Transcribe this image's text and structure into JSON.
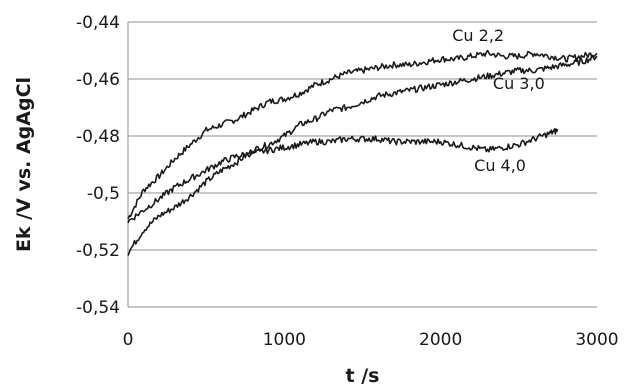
{
  "chart_data": {
    "type": "line",
    "xlabel": "t /s",
    "ylabel": "Ek /V vs. AgAgCl",
    "xlim": [
      0,
      3000
    ],
    "ylim": [
      -0.54,
      -0.44
    ],
    "xticks": [
      "0",
      "1000",
      "2000",
      "3000"
    ],
    "yticks": [
      "-0,44",
      "-0,46",
      "-0,48",
      "-0,5",
      "-0,52",
      "-0,54"
    ],
    "grid": "horizontal",
    "line_color": "#1a1a1a",
    "series": [
      {
        "name": "Cu 2,2",
        "x": [
          0,
          100,
          200,
          300,
          400,
          500,
          600,
          700,
          800,
          900,
          1000,
          1100,
          1200,
          1300,
          1400,
          1500,
          1600,
          1700,
          1800,
          1900,
          2000,
          2100,
          2200,
          2300,
          2400,
          2500,
          2600,
          2700,
          2800,
          2900,
          3000
        ],
        "y": [
          -0.509,
          -0.499,
          -0.494,
          -0.488,
          -0.483,
          -0.478,
          -0.476,
          -0.474,
          -0.471,
          -0.468,
          -0.467,
          -0.465,
          -0.462,
          -0.46,
          -0.458,
          -0.457,
          -0.456,
          -0.455,
          -0.455,
          -0.454,
          -0.453,
          -0.453,
          -0.452,
          -0.451,
          -0.452,
          -0.452,
          -0.451,
          -0.452,
          -0.453,
          -0.452,
          -0.451
        ]
      },
      {
        "name": "Cu 3,0",
        "x": [
          0,
          100,
          200,
          300,
          400,
          500,
          600,
          700,
          800,
          900,
          1000,
          1100,
          1200,
          1300,
          1400,
          1500,
          1600,
          1700,
          1800,
          1900,
          2000,
          2100,
          2200,
          2300,
          2400,
          2500,
          2600,
          2700,
          2800,
          2900,
          3000
        ],
        "y": [
          -0.521,
          -0.513,
          -0.508,
          -0.505,
          -0.501,
          -0.496,
          -0.492,
          -0.489,
          -0.485,
          -0.483,
          -0.48,
          -0.476,
          -0.474,
          -0.471,
          -0.47,
          -0.468,
          -0.466,
          -0.465,
          -0.464,
          -0.463,
          -0.462,
          -0.461,
          -0.46,
          -0.459,
          -0.458,
          -0.457,
          -0.457,
          -0.456,
          -0.455,
          -0.454,
          -0.452
        ]
      },
      {
        "name": "Cu 4,0",
        "x": [
          0,
          100,
          200,
          300,
          400,
          500,
          600,
          700,
          800,
          900,
          1000,
          1100,
          1200,
          1300,
          1400,
          1500,
          1600,
          1700,
          1800,
          1900,
          2000,
          2100,
          2200,
          2300,
          2400,
          2500,
          2600,
          2700,
          2750
        ],
        "y": [
          -0.51,
          -0.506,
          -0.502,
          -0.498,
          -0.495,
          -0.492,
          -0.489,
          -0.487,
          -0.486,
          -0.485,
          -0.484,
          -0.483,
          -0.482,
          -0.482,
          -0.481,
          -0.481,
          -0.481,
          -0.482,
          -0.482,
          -0.482,
          -0.482,
          -0.483,
          -0.484,
          -0.485,
          -0.484,
          -0.483,
          -0.481,
          -0.479,
          -0.478
        ]
      }
    ]
  }
}
